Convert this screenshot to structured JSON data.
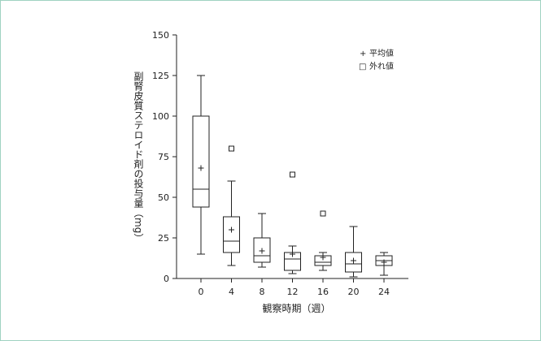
{
  "chart_data": {
    "type": "box",
    "xlabel": "観察時期（週）",
    "ylabel": "副腎皮質ステロイド剤の投与量（mg）",
    "ylim": [
      0,
      150
    ],
    "yticks": [
      0,
      25,
      50,
      75,
      100,
      125,
      150
    ],
    "categories": [
      "0",
      "4",
      "8",
      "12",
      "16",
      "20",
      "24"
    ],
    "boxes": [
      {
        "week": "0",
        "min": 15,
        "q1": 44,
        "median": 55,
        "q3": 100,
        "max": 125,
        "mean": 68,
        "outliers": []
      },
      {
        "week": "4",
        "min": 8,
        "q1": 16,
        "median": 23,
        "q3": 38,
        "max": 60,
        "mean": 30,
        "outliers": [
          80
        ]
      },
      {
        "week": "8",
        "min": 7,
        "q1": 10,
        "median": 14,
        "q3": 25,
        "max": 40,
        "mean": 17,
        "outliers": []
      },
      {
        "week": "12",
        "min": 3,
        "q1": 5,
        "median": 12,
        "q3": 16,
        "max": 20,
        "mean": 15,
        "outliers": [
          64
        ]
      },
      {
        "week": "16",
        "min": 5,
        "q1": 8,
        "median": 10,
        "q3": 14,
        "max": 16,
        "mean": 13,
        "outliers": [
          40
        ]
      },
      {
        "week": "20",
        "min": 1,
        "q1": 4,
        "median": 9,
        "q3": 16,
        "max": 32,
        "mean": 11,
        "outliers": []
      },
      {
        "week": "24",
        "min": 2,
        "q1": 8,
        "median": 11,
        "q3": 14,
        "max": 16,
        "mean": 10,
        "outliers": []
      }
    ],
    "legend": {
      "position": "top-right",
      "entries": [
        {
          "symbol": "+",
          "label": "平均値"
        },
        {
          "symbol": "□",
          "label": "外れ値"
        }
      ]
    },
    "grid": false,
    "colors": {
      "frame_border": "#9fd2c1",
      "ink": "#222222",
      "box_fill": "#ffffff"
    }
  }
}
